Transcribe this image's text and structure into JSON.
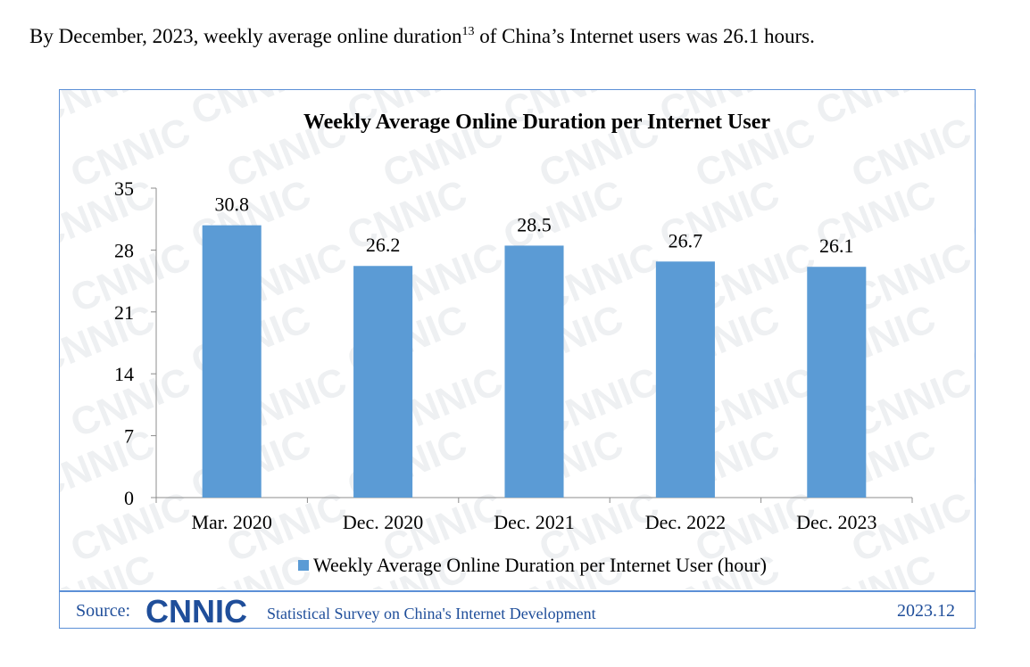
{
  "intro": {
    "text_before": "By December, 2023, weekly average online duration",
    "footnote": "13",
    "text_after": "  of China’s Internet users was 26.1 hours."
  },
  "watermark_text": "CNNIC",
  "chart_data": {
    "type": "bar",
    "title": "Weekly Average Online Duration per Internet User",
    "categories": [
      "Mar. 2020",
      "Dec. 2020",
      "Dec. 2021",
      "Dec. 2022",
      "Dec. 2023"
    ],
    "series": [
      {
        "name": "Weekly Average Online Duration per Internet User (hour)",
        "values": [
          30.8,
          26.2,
          28.5,
          26.7,
          26.1
        ]
      }
    ],
    "data_labels": [
      "30.8",
      "26.2",
      "28.5",
      "26.7",
      "26.1"
    ],
    "ylim": [
      0,
      35
    ],
    "yticks": [
      0,
      7,
      14,
      21,
      28,
      35
    ],
    "ytick_labels": [
      "0",
      "7",
      "14",
      "21",
      "28",
      "35"
    ],
    "xlabel": "",
    "ylabel": "",
    "grid": false,
    "legend_position": "bottom",
    "bar_color": "#5b9bd5"
  },
  "footer": {
    "source_label": "Source:",
    "logo_text": "CNNIC",
    "survey_text": "Statistical Survey on China's Internet Development",
    "date": "2023.12"
  }
}
